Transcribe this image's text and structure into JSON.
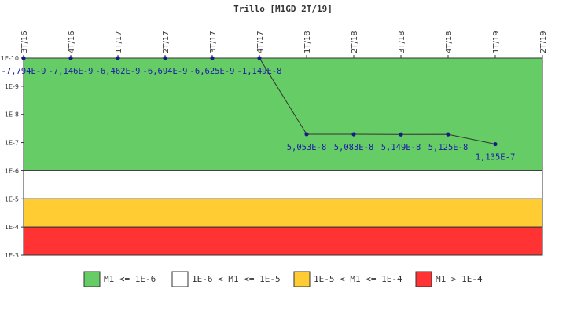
{
  "chart_data": {
    "type": "line",
    "title": "Trillo [M1GD 2T/19]",
    "xlabel": "",
    "ylabel": "",
    "y_scale": "log",
    "ylim": [
      1e-10,
      0.001
    ],
    "grid": false,
    "legend_position": "bottom",
    "categories": [
      "3T/16",
      "4T/16",
      "1T/17",
      "2T/17",
      "3T/17",
      "4T/17",
      "1T/18",
      "2T/18",
      "3T/18",
      "4T/18",
      "1T/19",
      "2T/19"
    ],
    "y_tick_labels": [
      "1E-10",
      "1E-9",
      "1E-8",
      "1E-7",
      "1E-6",
      "1E-5",
      "1E-4",
      "1E-3"
    ],
    "series": [
      {
        "values": [
          -7.794e-09,
          -7.146e-09,
          -6.462e-09,
          -6.694e-09,
          -6.625e-09,
          -1.149e-08,
          5.053e-08,
          5.083e-08,
          5.149e-08,
          5.125e-08,
          1.135e-07,
          null
        ],
        "labels": [
          "-7,794E-9",
          "-7,146E-9",
          "-6,462E-9",
          "-6,694E-9",
          "-6,625E-9",
          "-1,149E-8",
          "5,053E-8",
          "5,083E-8",
          "5,149E-8",
          "5,125E-8",
          "1,135E-7",
          ""
        ],
        "color": "#1a1a8c"
      }
    ],
    "bands": [
      {
        "from": 1e-10,
        "to": 1e-06,
        "color": "#66cc66",
        "legend": "M1 <= 1E-6"
      },
      {
        "from": 1e-06,
        "to": 1e-05,
        "color": "#ffffff",
        "legend": "1E-6 < M1 <= 1E-5"
      },
      {
        "from": 1e-05,
        "to": 0.0001,
        "color": "#ffcc33",
        "legend": "1E-5 < M1 <= 1E-4"
      },
      {
        "from": 0.0001,
        "to": 0.001,
        "color": "#ff3333",
        "legend": "M1 > 1E-4"
      }
    ]
  }
}
